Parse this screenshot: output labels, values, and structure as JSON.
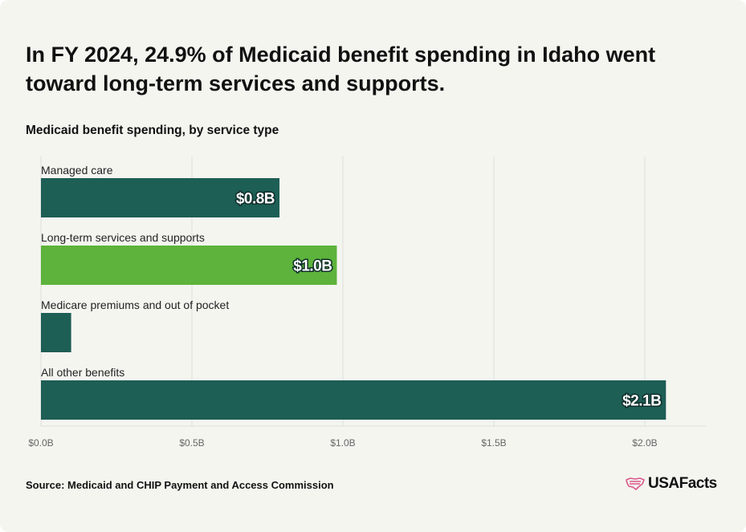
{
  "title": "In FY 2024, 24.9% of Medicaid benefit spending in Idaho went toward long-term services and supports.",
  "subtitle": "Medicaid benefit spending, by service type",
  "source": "Source: Medicaid and CHIP Payment and Access Commission",
  "brand": {
    "name": "USAFacts",
    "logo_icon": "usa-map-flag-icon"
  },
  "colors": {
    "background": "#f5f5f0",
    "bar_default": "#1d5e55",
    "bar_highlight": "#5db33b",
    "gridline": "#dddddd",
    "axis_label": "#666666",
    "brand_accent": "#d9578a"
  },
  "chart_data": {
    "type": "bar",
    "orientation": "horizontal",
    "categories": [
      "Managed care",
      "Long-term services and supports",
      "Medicare premiums and out of pocket",
      "All other benefits"
    ],
    "values": [
      0.79,
      0.98,
      0.1,
      2.07
    ],
    "value_labels": [
      "$0.8B",
      "$1.0B",
      "",
      "$2.1B"
    ],
    "highlight": "Long-term services and supports",
    "xlim": [
      0,
      2.2
    ],
    "xticks": [
      0,
      0.5,
      1.0,
      1.5,
      2.0
    ],
    "xtick_labels": [
      "$0.0B",
      "$0.5B",
      "$1.0B",
      "$1.5B",
      "$2.0B"
    ],
    "unit": "billions USD",
    "grid": true,
    "legend": "none"
  }
}
